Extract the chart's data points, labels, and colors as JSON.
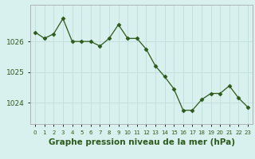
{
  "hours": [
    0,
    1,
    2,
    3,
    4,
    5,
    6,
    7,
    8,
    9,
    10,
    11,
    12,
    13,
    14,
    15,
    16,
    17,
    18,
    19,
    20,
    21,
    22,
    23
  ],
  "pressure": [
    1026.3,
    1026.1,
    1026.25,
    1026.75,
    1026.0,
    1026.0,
    1026.0,
    1025.85,
    1026.1,
    1026.55,
    1026.1,
    1026.1,
    1025.75,
    1025.2,
    1024.85,
    1024.45,
    1023.75,
    1023.75,
    1024.1,
    1024.3,
    1024.3,
    1024.55,
    1024.15,
    1023.85
  ],
  "line_color": "#2d5a1b",
  "marker": "D",
  "marker_size": 2.5,
  "background_color": "#d8f0ee",
  "grid_color": "#c0ddd8",
  "border_color": "#aaaaaa",
  "xlabel": "Graphe pression niveau de la mer (hPa)",
  "xlabel_fontsize": 7.5,
  "xlabel_fontweight": "bold",
  "tick_label_color": "#2d5a1b",
  "yticks": [
    1024,
    1025,
    1026
  ],
  "ylim": [
    1023.3,
    1027.2
  ],
  "xlim": [
    -0.5,
    23.5
  ],
  "xtick_labels": [
    "0",
    "1",
    "2",
    "3",
    "4",
    "5",
    "6",
    "7",
    "8",
    "9",
    "10",
    "11",
    "12",
    "13",
    "14",
    "15",
    "16",
    "17",
    "18",
    "19",
    "20",
    "21",
    "22",
    "23"
  ]
}
